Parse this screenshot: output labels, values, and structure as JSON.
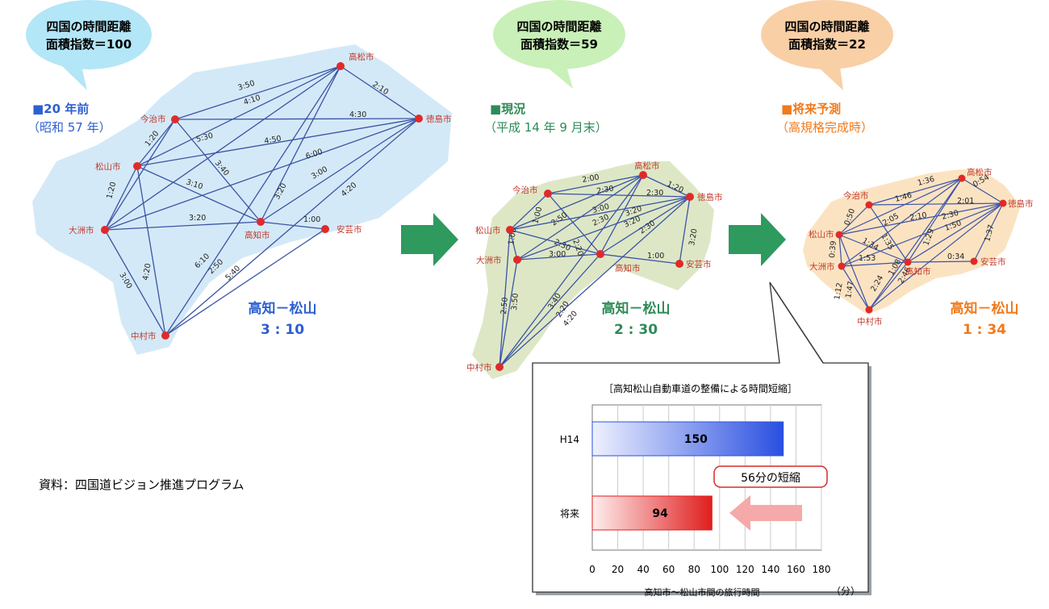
{
  "maps": [
    {
      "id": "past",
      "bubble": {
        "line1": "四国の時間距離",
        "line2": "面積指数＝100",
        "fill": "#b3e6f7"
      },
      "heading": "■20 年前",
      "subheading": "（昭和 57 年）",
      "color": "#2d5fd0",
      "route_label": "高知－松山",
      "route_time": "3 : 10",
      "cities": [
        {
          "name": "高松市"
        },
        {
          "name": "徳島市"
        },
        {
          "name": "今治市"
        },
        {
          "name": "松山市"
        },
        {
          "name": "大洲市"
        },
        {
          "name": "高知市"
        },
        {
          "name": "安芸市"
        },
        {
          "name": "中村市"
        }
      ],
      "edge_labels": [
        "3:50",
        "4:10",
        "2:10",
        "4:30",
        "1:20",
        "5:30",
        "4:50",
        "6:00",
        "3:40",
        "3:10",
        "3:00",
        "3:20",
        "4:20",
        "1:20",
        "3:20",
        "1:00",
        "6:10",
        "2:50",
        "5:40",
        "4:20",
        "3:00"
      ]
    },
    {
      "id": "current",
      "bubble": {
        "line1": "四国の時間距離",
        "line2": "面積指数＝59",
        "fill": "#c9f0b8"
      },
      "heading": "■現況",
      "subheading": "（平成 14 年 9 月末）",
      "color": "#2e8b57",
      "route_label": "高知－松山",
      "route_time": "2 : 30",
      "cities": [
        {
          "name": "高松市"
        },
        {
          "name": "徳島市"
        },
        {
          "name": "今治市"
        },
        {
          "name": "松山市"
        },
        {
          "name": "大洲市"
        },
        {
          "name": "高知市"
        },
        {
          "name": "安芸市"
        },
        {
          "name": "中村市"
        }
      ],
      "edge_labels": [
        "2:00",
        "1:20",
        "2:30",
        "2:30",
        "1:00",
        "2:50",
        "3:00",
        "3:20",
        "2:30",
        "3:20",
        "1:00",
        "2:20",
        "2:30",
        "3:00",
        "2:30",
        "1:00",
        "3:20",
        "2:50",
        "3:40",
        "3:50",
        "2:20",
        "4:20"
      ]
    },
    {
      "id": "future",
      "bubble": {
        "line1": "四国の時間距離",
        "line2": "面積指数＝22",
        "fill": "#f9cfa6"
      },
      "heading": "■将来予測",
      "subheading": "（高規格完成時）",
      "color": "#f07a1c",
      "route_label": "高知－松山",
      "route_time": "1 : 34",
      "cities": [
        {
          "name": "高松市"
        },
        {
          "name": "徳島市"
        },
        {
          "name": "今治市"
        },
        {
          "name": "松山市"
        },
        {
          "name": "大洲市"
        },
        {
          "name": "高知市"
        },
        {
          "name": "安芸市"
        },
        {
          "name": "中村市"
        }
      ],
      "edge_labels": [
        "1:36",
        "0:54",
        "1:46",
        "2:01",
        "0:50",
        "2:05",
        "2:10",
        "2:30",
        "1:50",
        "1:37",
        "1:35",
        "1:34",
        "1:29",
        "0:39",
        "1:53",
        "1:08",
        "0:34",
        "2:46",
        "1:47",
        "2:24",
        "1:12"
      ]
    }
  ],
  "source_note": "資料：四国道ビジョン推進プログラム",
  "chart_data": {
    "type": "bar",
    "title": "［高知松山自動車道の整備による時間短縮］",
    "categories": [
      "H14",
      "将来"
    ],
    "values": [
      150,
      94
    ],
    "xlim": [
      0,
      180
    ],
    "xticks": [
      "0",
      "20",
      "40",
      "60",
      "80",
      "100",
      "120",
      "140",
      "160",
      "180"
    ],
    "xlabel": "高知市～松山市間の旅行時間",
    "unit": "（分）",
    "annotation": "56分の短縮",
    "colors": {
      "H14": "#2a4fe0",
      "将来": "#e01e1e"
    },
    "grid": true
  }
}
